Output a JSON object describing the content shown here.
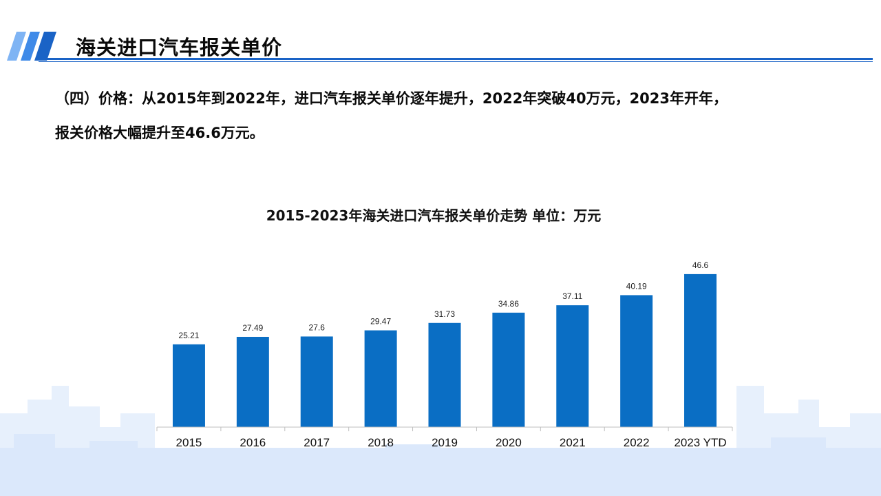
{
  "header": {
    "title": "海关进口汽车报关单价"
  },
  "intro": {
    "line1": "（四）价格：从2015年到2022年，进口汽车报关单价逐年提升，2022年突破40万元，2023年开年，",
    "line2": "报关价格大幅提升至46.6万元。"
  },
  "colors": {
    "accent": "#1a63c6",
    "bar": "#0a6ec4",
    "skyline": "#dde9fa"
  },
  "chart_data": {
    "type": "bar",
    "title": "2015-2023年海关进口汽车报关单价走势 单位：万元",
    "categories": [
      "2015",
      "2016",
      "2017",
      "2018",
      "2019",
      "2020",
      "2021",
      "2022",
      "2023 YTD"
    ],
    "values": [
      25.21,
      27.49,
      27.6,
      29.47,
      31.73,
      34.86,
      37.11,
      40.19,
      46.6
    ],
    "value_labels": [
      "25.21",
      "27.49",
      "27.6",
      "29.47",
      "31.73",
      "34.86",
      "37.11",
      "40.19",
      "46.6"
    ],
    "xlabel": "",
    "ylabel": "",
    "ylim": [
      0,
      47
    ],
    "grid": false,
    "legend": "none"
  }
}
